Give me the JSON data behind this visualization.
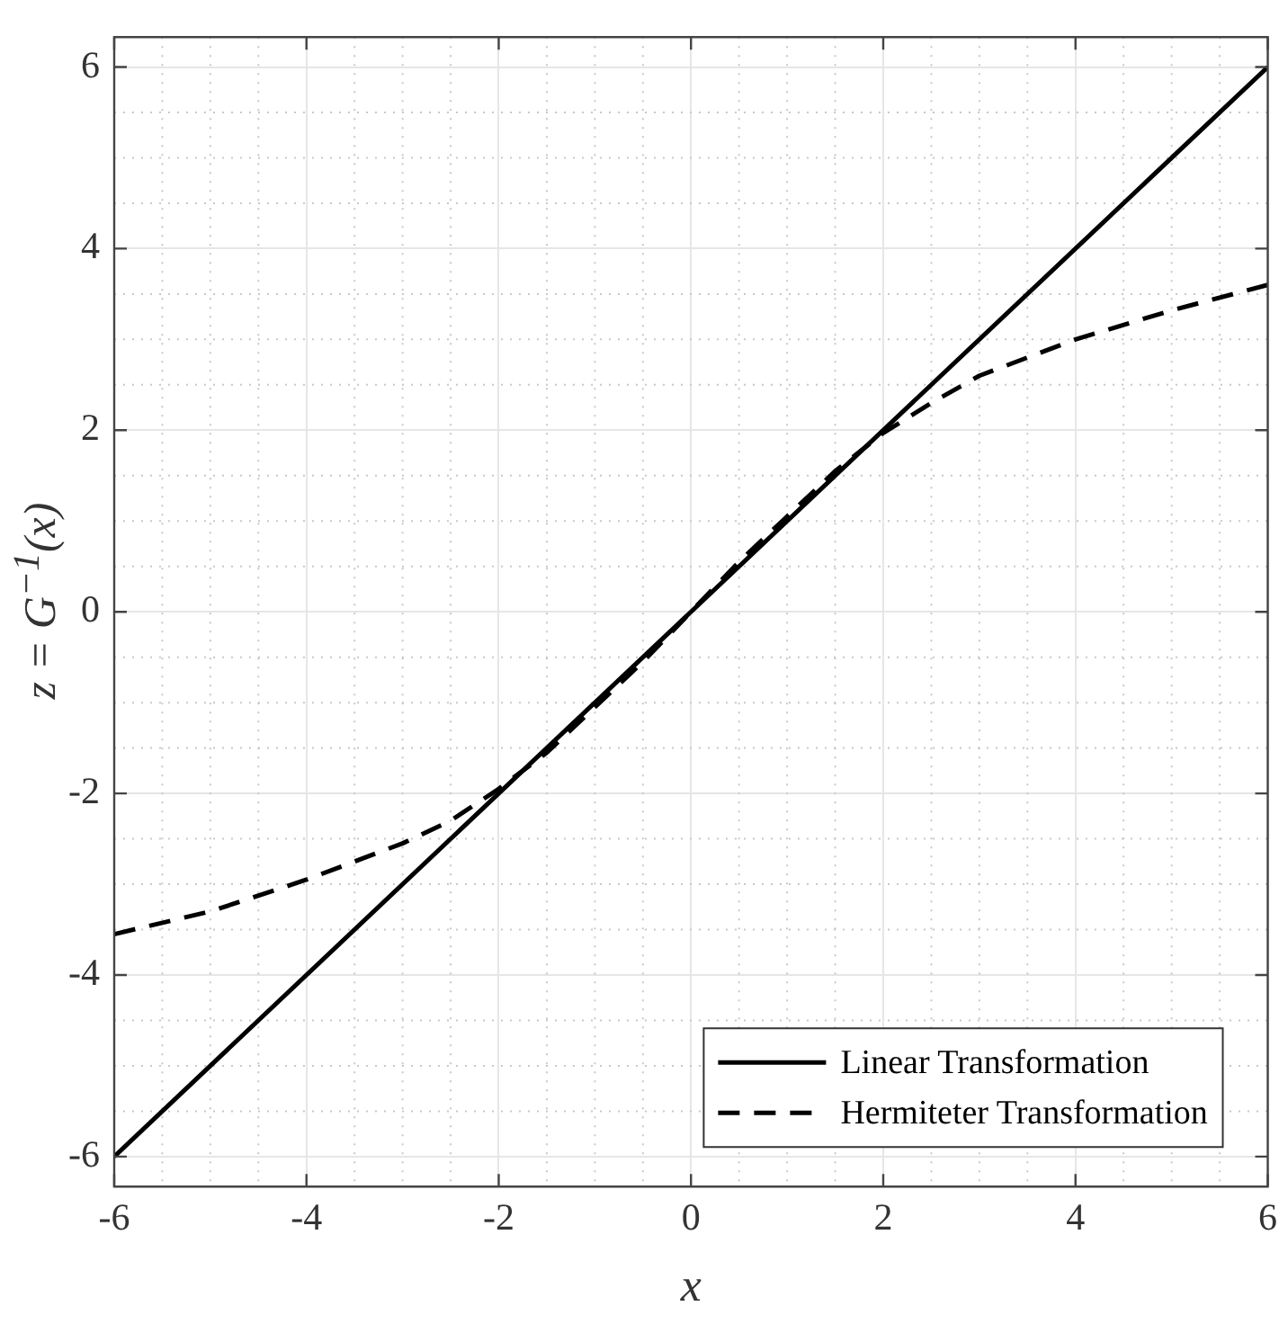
{
  "chart_data": {
    "type": "line",
    "xlabel": "x",
    "ylabel": "z = G$^{−1}$(x)",
    "xlim": [
      -6,
      6
    ],
    "ylim": [
      -6.33,
      6.33
    ],
    "xticks": [
      -6,
      -4,
      -2,
      0,
      2,
      4,
      6
    ],
    "yticks": [
      -6,
      -4,
      -2,
      0,
      2,
      4,
      6
    ],
    "grid": true,
    "legend": "bottom right",
    "marker": "none",
    "series": [
      {
        "name": "Linear Transformation",
        "color": "#000000",
        "line_style": "solid",
        "x": [
          -6,
          6
        ],
        "values": [
          -6,
          6
        ]
      },
      {
        "name": "Hermiteter Transformation",
        "color": "#000000",
        "line_style": "dashed",
        "x": [
          -6,
          -5,
          -4,
          -3,
          -2.5,
          -2,
          -1.5,
          -1,
          -0.5,
          0,
          0.5,
          1,
          1.5,
          2,
          2.5,
          3,
          4,
          5,
          6
        ],
        "values": [
          -3.55,
          -3.3,
          -2.95,
          -2.55,
          -2.3,
          -1.95,
          -1.55,
          -1.05,
          -0.55,
          0,
          0.55,
          1.05,
          1.55,
          1.97,
          2.3,
          2.6,
          3.0,
          3.32,
          3.6
        ]
      }
    ]
  }
}
